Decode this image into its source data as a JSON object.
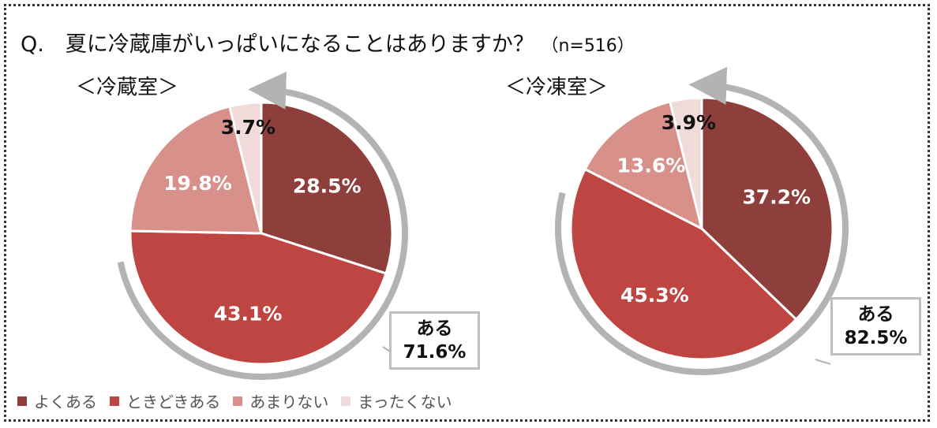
{
  "question": {
    "text": "Q.　夏に冷蔵庫がいっぱいになることはありますか？",
    "n": "（n=516）"
  },
  "legend": [
    {
      "label": "よくある",
      "color": "#8e3f3b"
    },
    {
      "label": "ときどきある",
      "color": "#be4541"
    },
    {
      "label": "あまりない",
      "color": "#d8908b"
    },
    {
      "label": "まったくない",
      "color": "#f1dada"
    }
  ],
  "chart_data": [
    {
      "type": "pie",
      "title": "＜冷蔵室＞",
      "categories": [
        "よくある",
        "ときどきある",
        "あまりない",
        "まったくない"
      ],
      "values": [
        28.5,
        43.1,
        19.8,
        3.7
      ],
      "labels": [
        "28.5%",
        "43.1%",
        "19.8%",
        "3.7%"
      ],
      "annotation": {
        "label": "ある",
        "value": "71.6%"
      }
    },
    {
      "type": "pie",
      "title": "＜冷凍室＞",
      "categories": [
        "よくある",
        "ときどきある",
        "あまりない",
        "まったくない"
      ],
      "values": [
        37.2,
        45.3,
        13.6,
        3.9
      ],
      "labels": [
        "37.2%",
        "45.3%",
        "13.6%",
        "3.9%"
      ],
      "annotation": {
        "label": "ある",
        "value": "82.5%"
      }
    }
  ]
}
